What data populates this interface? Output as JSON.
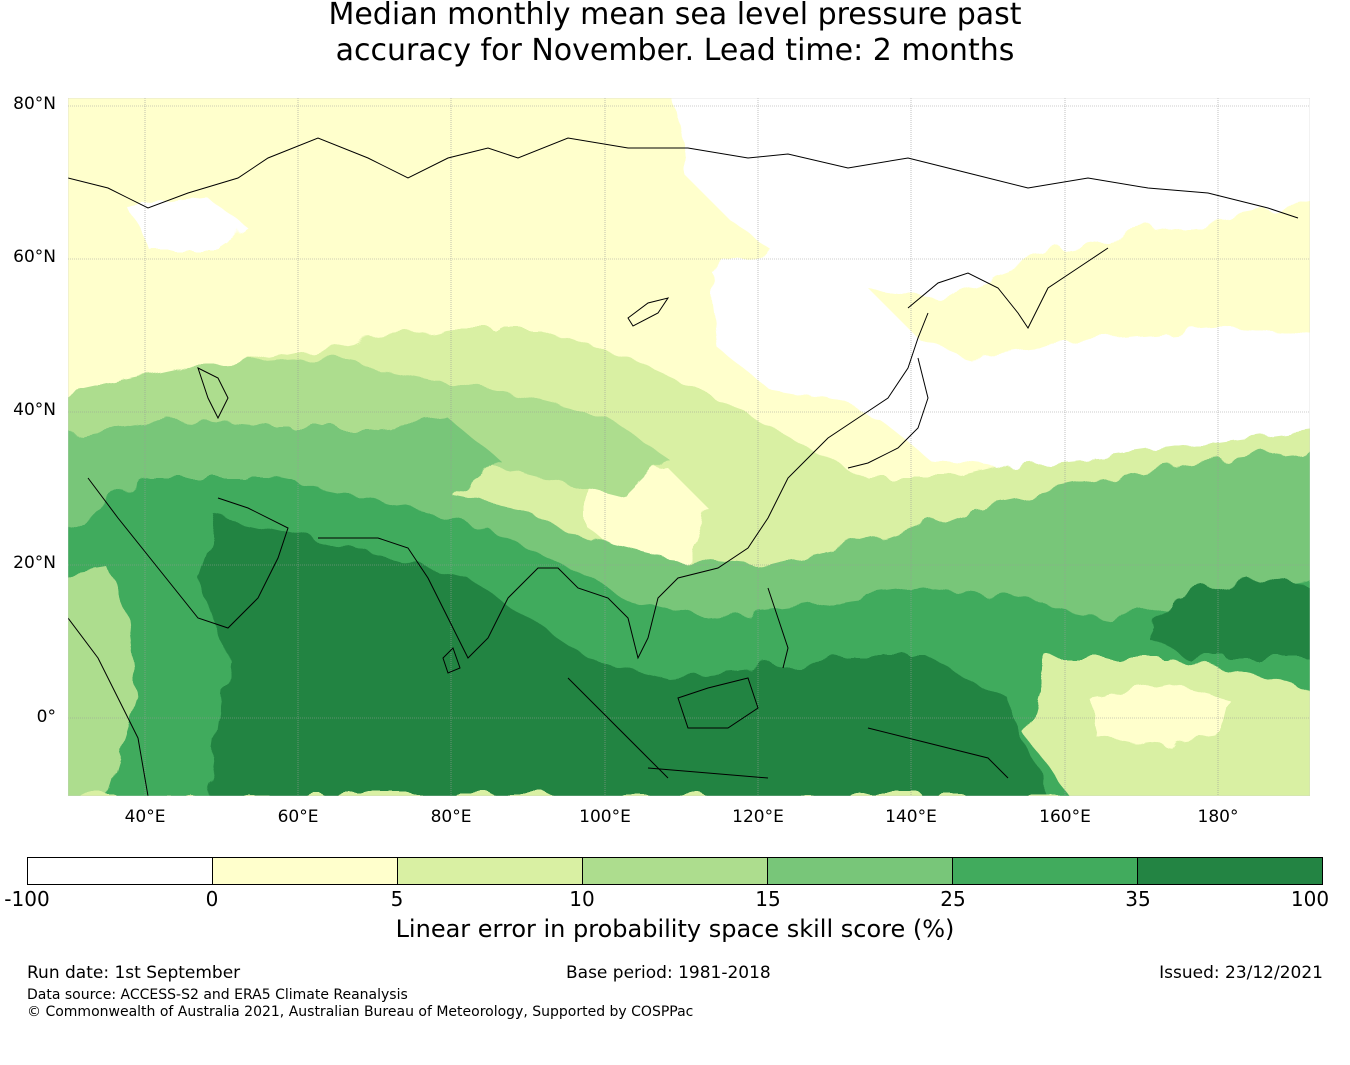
{
  "title": {
    "line1": "Median monthly mean sea level pressure past",
    "line2": "accuracy for November. Lead time: 2 months"
  },
  "map": {
    "lat_labels": [
      "80°N",
      "60°N",
      "40°N",
      "20°N",
      "0°"
    ],
    "lon_labels": [
      "40°E",
      "60°E",
      "80°E",
      "100°E",
      "120°E",
      "140°E",
      "160°E",
      "180°"
    ],
    "lon_range": [
      30,
      192
    ],
    "lat_range": [
      -10,
      81
    ]
  },
  "colorbar": {
    "ticks": [
      "-100",
      "0",
      "5",
      "10",
      "15",
      "25",
      "35",
      "100"
    ],
    "colors": [
      "#ffffff",
      "#ffffcc",
      "#d9f0a3",
      "#addd8e",
      "#78c679",
      "#41ab5d",
      "#238443"
    ],
    "label": "Linear error in probability space skill score (%)"
  },
  "footer": {
    "run_date": "Run date: 1st September",
    "base_period": "Base period: 1981-2018",
    "issued": "Issued: 23/12/2021",
    "data_source": "Data source: ACCESS-S2 and ERA5 Climate Reanalysis",
    "copyright": "© Commonwealth of Australia 2021, Australian Bureau of Meteorology, Supported by COSPPac"
  }
}
